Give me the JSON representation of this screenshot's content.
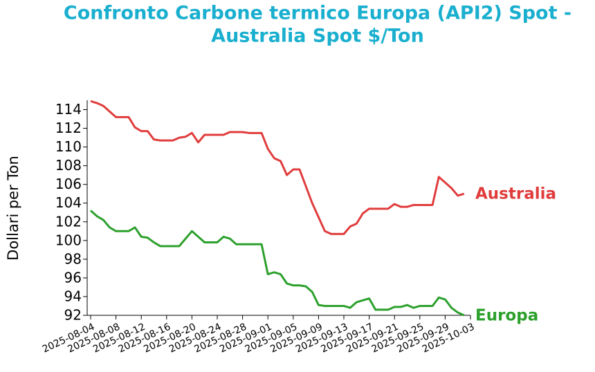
{
  "chart_data": {
    "type": "line",
    "title": [
      "Confronto Carbone termico Europa (API2) Spot -",
      "Australia Spot $/Ton"
    ],
    "ylabel": "Dollari per Ton",
    "x": [
      "2025-08-04",
      "2025-08-05",
      "2025-08-06",
      "2025-08-07",
      "2025-08-08",
      "2025-08-09",
      "2025-08-10",
      "2025-08-11",
      "2025-08-12",
      "2025-08-13",
      "2025-08-14",
      "2025-08-15",
      "2025-08-16",
      "2025-08-17",
      "2025-08-18",
      "2025-08-19",
      "2025-08-20",
      "2025-08-21",
      "2025-08-22",
      "2025-08-23",
      "2025-08-24",
      "2025-08-25",
      "2025-08-26",
      "2025-08-27",
      "2025-08-28",
      "2025-08-29",
      "2025-08-30",
      "2025-08-31",
      "2025-09-01",
      "2025-09-02",
      "2025-09-03",
      "2025-09-04",
      "2025-09-05",
      "2025-09-06",
      "2025-09-07",
      "2025-09-08",
      "2025-09-09",
      "2025-09-10",
      "2025-09-11",
      "2025-09-12",
      "2025-09-13",
      "2025-09-14",
      "2025-09-15",
      "2025-09-16",
      "2025-09-17",
      "2025-09-18",
      "2025-09-19",
      "2025-09-20",
      "2025-09-21",
      "2025-09-22",
      "2025-09-23",
      "2025-09-24",
      "2025-09-25",
      "2025-09-26",
      "2025-09-27",
      "2025-09-28",
      "2025-09-29",
      "2025-09-30",
      "2025-10-01",
      "2025-10-02"
    ],
    "series": [
      {
        "name": "Australia",
        "color": "#e03c3c",
        "values": [
          114.9,
          114.7,
          114.4,
          113.8,
          113.2,
          113.2,
          113.2,
          112.1,
          111.7,
          111.7,
          110.8,
          110.7,
          110.7,
          110.7,
          111.0,
          111.1,
          111.5,
          110.5,
          111.3,
          111.3,
          111.3,
          111.3,
          111.6,
          111.6,
          111.6,
          111.5,
          111.5,
          111.5,
          109.8,
          108.8,
          108.5,
          107.0,
          107.6,
          107.6,
          105.8,
          104.0,
          102.5,
          101.0,
          100.7,
          100.7,
          100.7,
          101.5,
          101.8,
          102.9,
          103.4,
          103.4,
          103.4,
          103.4,
          103.9,
          103.6,
          103.6,
          103.8,
          103.8,
          103.8,
          103.8,
          106.8,
          106.2,
          105.6,
          104.8,
          105.0
        ]
      },
      {
        "name": "Europa",
        "color": "#2ca02c",
        "values": [
          103.2,
          102.6,
          102.2,
          101.4,
          101.0,
          101.0,
          101.0,
          101.4,
          100.4,
          100.3,
          99.8,
          99.4,
          99.4,
          99.4,
          99.4,
          100.2,
          101.0,
          100.4,
          99.8,
          99.8,
          99.8,
          100.4,
          100.2,
          99.6,
          99.6,
          99.6,
          99.6,
          99.6,
          96.4,
          96.6,
          96.4,
          95.4,
          95.2,
          95.2,
          95.1,
          94.5,
          93.1,
          93.0,
          93.0,
          93.0,
          93.0,
          92.8,
          93.4,
          93.6,
          93.8,
          92.6,
          92.6,
          92.6,
          92.9,
          92.9,
          93.1,
          92.8,
          93.0,
          93.0,
          93.0,
          93.9,
          93.7,
          92.8,
          92.3,
          92.0
        ]
      }
    ],
    "xlim": [
      "2025-08-04",
      "2025-10-03"
    ],
    "xticks": [
      "2025-08-04",
      "2025-08-08",
      "2025-08-12",
      "2025-08-16",
      "2025-08-20",
      "2025-08-24",
      "2025-08-28",
      "2025-09-01",
      "2025-09-05",
      "2025-09-09",
      "2025-09-13",
      "2025-09-17",
      "2025-09-21",
      "2025-09-25",
      "2025-09-29",
      "2025-10-03"
    ],
    "ylim": [
      92,
      115
    ],
    "yticks": [
      92,
      94,
      96,
      98,
      100,
      102,
      104,
      106,
      108,
      110,
      112,
      114
    ],
    "title_color": "#1aafcf"
  }
}
